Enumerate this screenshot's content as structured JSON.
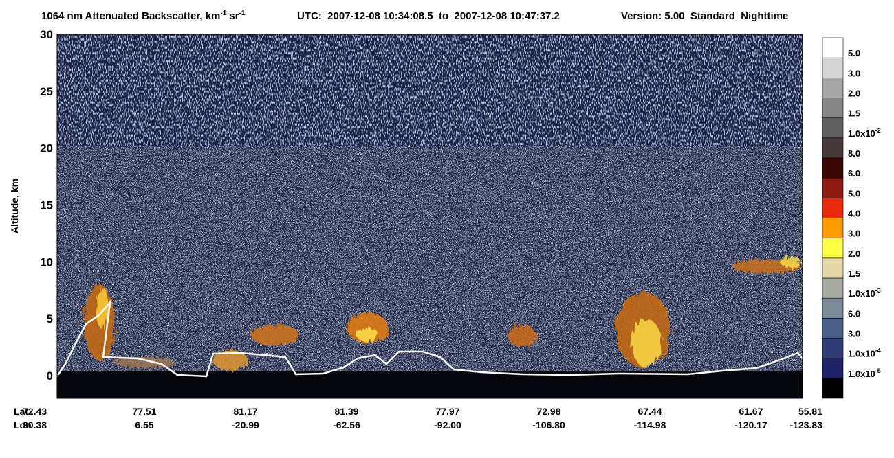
{
  "chart_data": {
    "type": "curtain",
    "title": [
      "1064 nm Attenuated Backscatter, km",
      "-1",
      "sr",
      "-1"
    ],
    "time_range": "UTC:  2007-12-08 10:34:08.5  to  2007-12-08 10:47:37.2",
    "version": "Version: 5.00  Standard  Nighttime",
    "ylabel": "Altitude, km",
    "ylim": [
      -2,
      30
    ],
    "yticks": [
      0,
      5,
      10,
      15,
      20,
      25,
      30
    ],
    "x_row_labels": [
      "Lat",
      "Lon"
    ],
    "lat": [
      "72.43",
      "77.51",
      "81.17",
      "81.39",
      "77.97",
      "72.98",
      "67.44",
      "61.67",
      "55.81"
    ],
    "lon": [
      "20.38",
      "6.55",
      "-20.99",
      "-62.56",
      "-92.00",
      "-106.80",
      "-114.98",
      "-120.17",
      "-123.83"
    ],
    "colorbar": {
      "colors": [
        "#000000",
        "#1e2168",
        "#2f3c78",
        "#4a6088",
        "#7a8a98",
        "#a9aca4",
        "#e6d8aa",
        "#ffff45",
        "#ff9c00",
        "#ea2a0c",
        "#8c1a12",
        "#3a0606",
        "#45393a",
        "#616161",
        "#868686",
        "#a8a8a8",
        "#d4d4d4",
        "#ffffff"
      ],
      "labels": [
        {
          "text": "1.0x10",
          "sup": "-5"
        },
        {
          "text": "1.0x10",
          "sup": "-4"
        },
        {
          "text": "3.0"
        },
        {
          "text": "6.0"
        },
        {
          "text": "1.0x10",
          "sup": "-3"
        },
        {
          "text": "1.5"
        },
        {
          "text": "2.0"
        },
        {
          "text": "3.0"
        },
        {
          "text": "4.0"
        },
        {
          "text": "5.0"
        },
        {
          "text": "6.0"
        },
        {
          "text": "8.0"
        },
        {
          "text": "1.0x10",
          "sup": "-2"
        },
        {
          "text": "1.5"
        },
        {
          "text": "2.0"
        },
        {
          "text": "3.0"
        },
        {
          "text": "5.0"
        }
      ]
    }
  }
}
